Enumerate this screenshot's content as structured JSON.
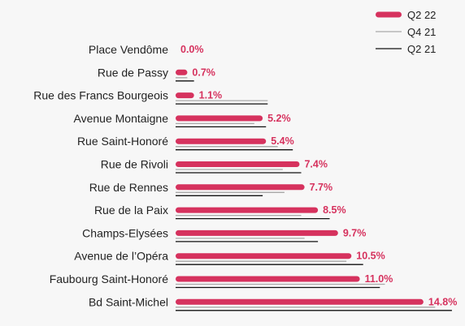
{
  "chart_data": {
    "type": "bar",
    "orientation": "horizontal",
    "categories": [
      "Place Vendôme",
      "Rue de Passy",
      "Rue des Francs Bourgeois",
      "Avenue Montaigne",
      "Rue Saint-Honoré",
      "Rue de Rivoli",
      "Rue de Rennes",
      "Rue de la Paix",
      "Champs-Elysées",
      "Avenue de l’Opéra",
      "Faubourg Saint-Honoré",
      "Bd Saint-Michel"
    ],
    "series": [
      {
        "name": "Q2 22",
        "color": "#d6325e",
        "values": [
          0.0,
          0.7,
          1.1,
          5.2,
          5.4,
          7.4,
          7.7,
          8.5,
          9.7,
          10.5,
          11.0,
          14.8
        ],
        "labels": [
          "0.0%",
          "0.7%",
          "1.1%",
          "5.2%",
          "5.4%",
          "7.4%",
          "7.7%",
          "8.5%",
          "9.7%",
          "10.5%",
          "11.0%",
          "14.8%"
        ]
      },
      {
        "name": "Q4 21",
        "color": "#a8a8a8",
        "values": [
          0.0,
          0.7,
          5.5,
          4.7,
          6.1,
          6.4,
          6.5,
          7.5,
          7.7,
          10.2,
          12.5,
          15.5
        ]
      },
      {
        "name": "Q2 21",
        "color": "#111111",
        "values": [
          0.0,
          1.1,
          5.5,
          5.4,
          7.0,
          7.5,
          5.2,
          9.2,
          8.5,
          11.2,
          12.2,
          16.5
        ]
      }
    ],
    "xlim": [
      0,
      17
    ],
    "legend": "top-right",
    "grid": false
  }
}
